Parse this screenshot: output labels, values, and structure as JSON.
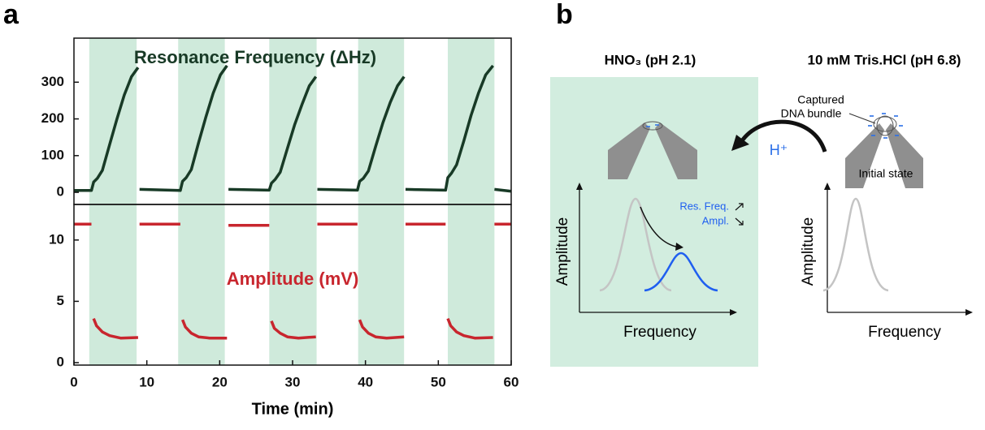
{
  "labels": [
    "a",
    "b"
  ],
  "chart_data": [
    {
      "type": "line",
      "title": "Resonance Frequency (ΔHz)",
      "color": "#183a26",
      "xlim": [
        0,
        60
      ],
      "ylim": [
        -33,
        420
      ],
      "yticks": [
        0,
        100,
        200,
        300
      ],
      "shaded_spans": [
        [
          2.1,
          8.6
        ],
        [
          14.3,
          20.7
        ],
        [
          26.8,
          33.3
        ],
        [
          39,
          45.3
        ],
        [
          51.3,
          57.7
        ]
      ],
      "shade_color": "#cfeadb",
      "x": [
        0,
        2.4,
        2.7,
        3.2,
        3.9,
        4.9,
        5.9,
        6.9,
        7.9,
        8.8,
        8.85,
        9.0,
        14.6,
        14.9,
        15.4,
        16.1,
        17.1,
        18.1,
        19.1,
        20.1,
        21.0,
        21.05,
        21.2,
        26.8,
        27.1,
        27.6,
        28.3,
        29.3,
        30.3,
        31.3,
        32.3,
        33.2,
        33.25,
        33.4,
        38.9,
        39.2,
        39.7,
        40.4,
        41.4,
        42.4,
        43.4,
        44.4,
        45.3,
        45.35,
        45.5,
        51.0,
        51.3,
        51.8,
        52.5,
        53.5,
        54.5,
        55.5,
        56.5,
        57.5,
        57.55,
        57.7,
        60
      ],
      "values": [
        5,
        5,
        28,
        38,
        60,
        130,
        200,
        265,
        315,
        340,
        null,
        8,
        5,
        30,
        40,
        62,
        135,
        205,
        270,
        320,
        345,
        null,
        8,
        6,
        25,
        35,
        55,
        120,
        185,
        240,
        290,
        315,
        null,
        8,
        6,
        30,
        38,
        58,
        125,
        190,
        245,
        290,
        315,
        null,
        8,
        6,
        40,
        52,
        75,
        140,
        210,
        270,
        320,
        345,
        null,
        8,
        3
      ]
    },
    {
      "type": "line",
      "title": "Amplitude (mV)",
      "color": "#c8262e",
      "xlim": [
        0,
        60
      ],
      "xticks": [
        0,
        10,
        20,
        30,
        40,
        50,
        60
      ],
      "xlabel": "Time (min)",
      "ylim": [
        -0.2,
        12.9
      ],
      "yticks": [
        0,
        5,
        10
      ],
      "x": [
        0,
        2.4,
        2.45,
        2.7,
        3.1,
        3.9,
        4.9,
        6.4,
        8.8,
        8.85,
        9.0,
        14.6,
        14.65,
        14.9,
        15.3,
        16.1,
        17.1,
        18.6,
        21.0,
        21.05,
        21.2,
        26.8,
        26.85,
        27.1,
        27.5,
        28.3,
        29.3,
        30.8,
        33.2,
        33.25,
        33.4,
        38.9,
        38.95,
        39.2,
        39.6,
        40.4,
        41.4,
        42.9,
        45.3,
        45.35,
        45.5,
        51.0,
        51.05,
        51.3,
        51.7,
        52.5,
        53.5,
        55.0,
        57.5,
        57.55,
        57.7,
        60
      ],
      "values": [
        11.3,
        11.3,
        null,
        3.6,
        3.0,
        2.5,
        2.2,
        2.0,
        2.05,
        null,
        11.3,
        11.3,
        null,
        3.5,
        2.9,
        2.4,
        2.1,
        2.0,
        2.0,
        null,
        11.2,
        11.2,
        null,
        3.4,
        2.8,
        2.4,
        2.1,
        2.0,
        2.1,
        null,
        11.3,
        11.3,
        null,
        3.5,
        2.9,
        2.4,
        2.1,
        2.0,
        2.1,
        null,
        11.3,
        11.3,
        null,
        3.6,
        3.0,
        2.5,
        2.2,
        2.0,
        2.05,
        null,
        11.3,
        11.3
      ]
    }
  ],
  "diagram": {
    "left_title": "HNO₃  (pH 2.1)",
    "right_title": "10 mM Tris.HCl (pH 6.8)",
    "bundle_label": [
      "Captured",
      "DNA bundle"
    ],
    "ion": "H⁺",
    "initial_state": "Initial state",
    "res_freq": "Res. Freq.",
    "ampl": "Ampl.",
    "left_ylabel": "Amplitude",
    "left_xlabel": "Frequency",
    "right_ylabel": "Amplitude",
    "right_xlabel": "Frequency"
  }
}
